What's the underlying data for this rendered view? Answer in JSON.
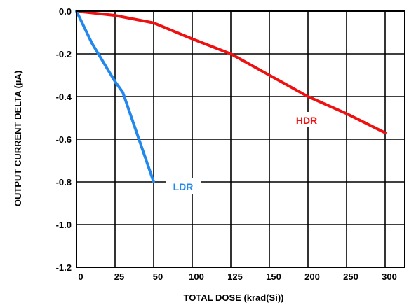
{
  "chart_data": {
    "type": "line",
    "title": "",
    "xlabel": "TOTAL DOSE (krad(Si))",
    "ylabel": "OUTPUT CURRENT DELTA (µA)",
    "ylim": [
      -1.2,
      0.0
    ],
    "y_ticks": [
      "0.0",
      "-0.2",
      "-0.4",
      "-0.6",
      "-0.8",
      "-1.0",
      "-1.2"
    ],
    "y_tick_values": [
      0.0,
      -0.2,
      -0.4,
      -0.6,
      -0.8,
      -1.0,
      -1.2
    ],
    "x_ticks": [
      "0",
      "25",
      "50",
      "100",
      "125",
      "150",
      "200",
      "250",
      "300"
    ],
    "x_tick_values": [
      0,
      25,
      50,
      100,
      125,
      150,
      200,
      250,
      300
    ],
    "x_scale": "non-uniform (tick spacing equal; ticks 0, 25, 50, 100, 125, 150, 200, 250, 300)",
    "grid": true,
    "series": [
      {
        "name": "HDR",
        "color": "#ee1111",
        "x": [
          0,
          25,
          50,
          100,
          125,
          150,
          200,
          250,
          300
        ],
        "y": [
          0.0,
          -0.02,
          -0.055,
          -0.13,
          -0.2,
          -0.3,
          -0.4,
          -0.48,
          -0.57
        ]
      },
      {
        "name": "LDR",
        "color": "#2288ee",
        "x": [
          0,
          10,
          25,
          30,
          50
        ],
        "y": [
          0.0,
          -0.15,
          -0.33,
          -0.38,
          -0.8
        ]
      }
    ]
  }
}
